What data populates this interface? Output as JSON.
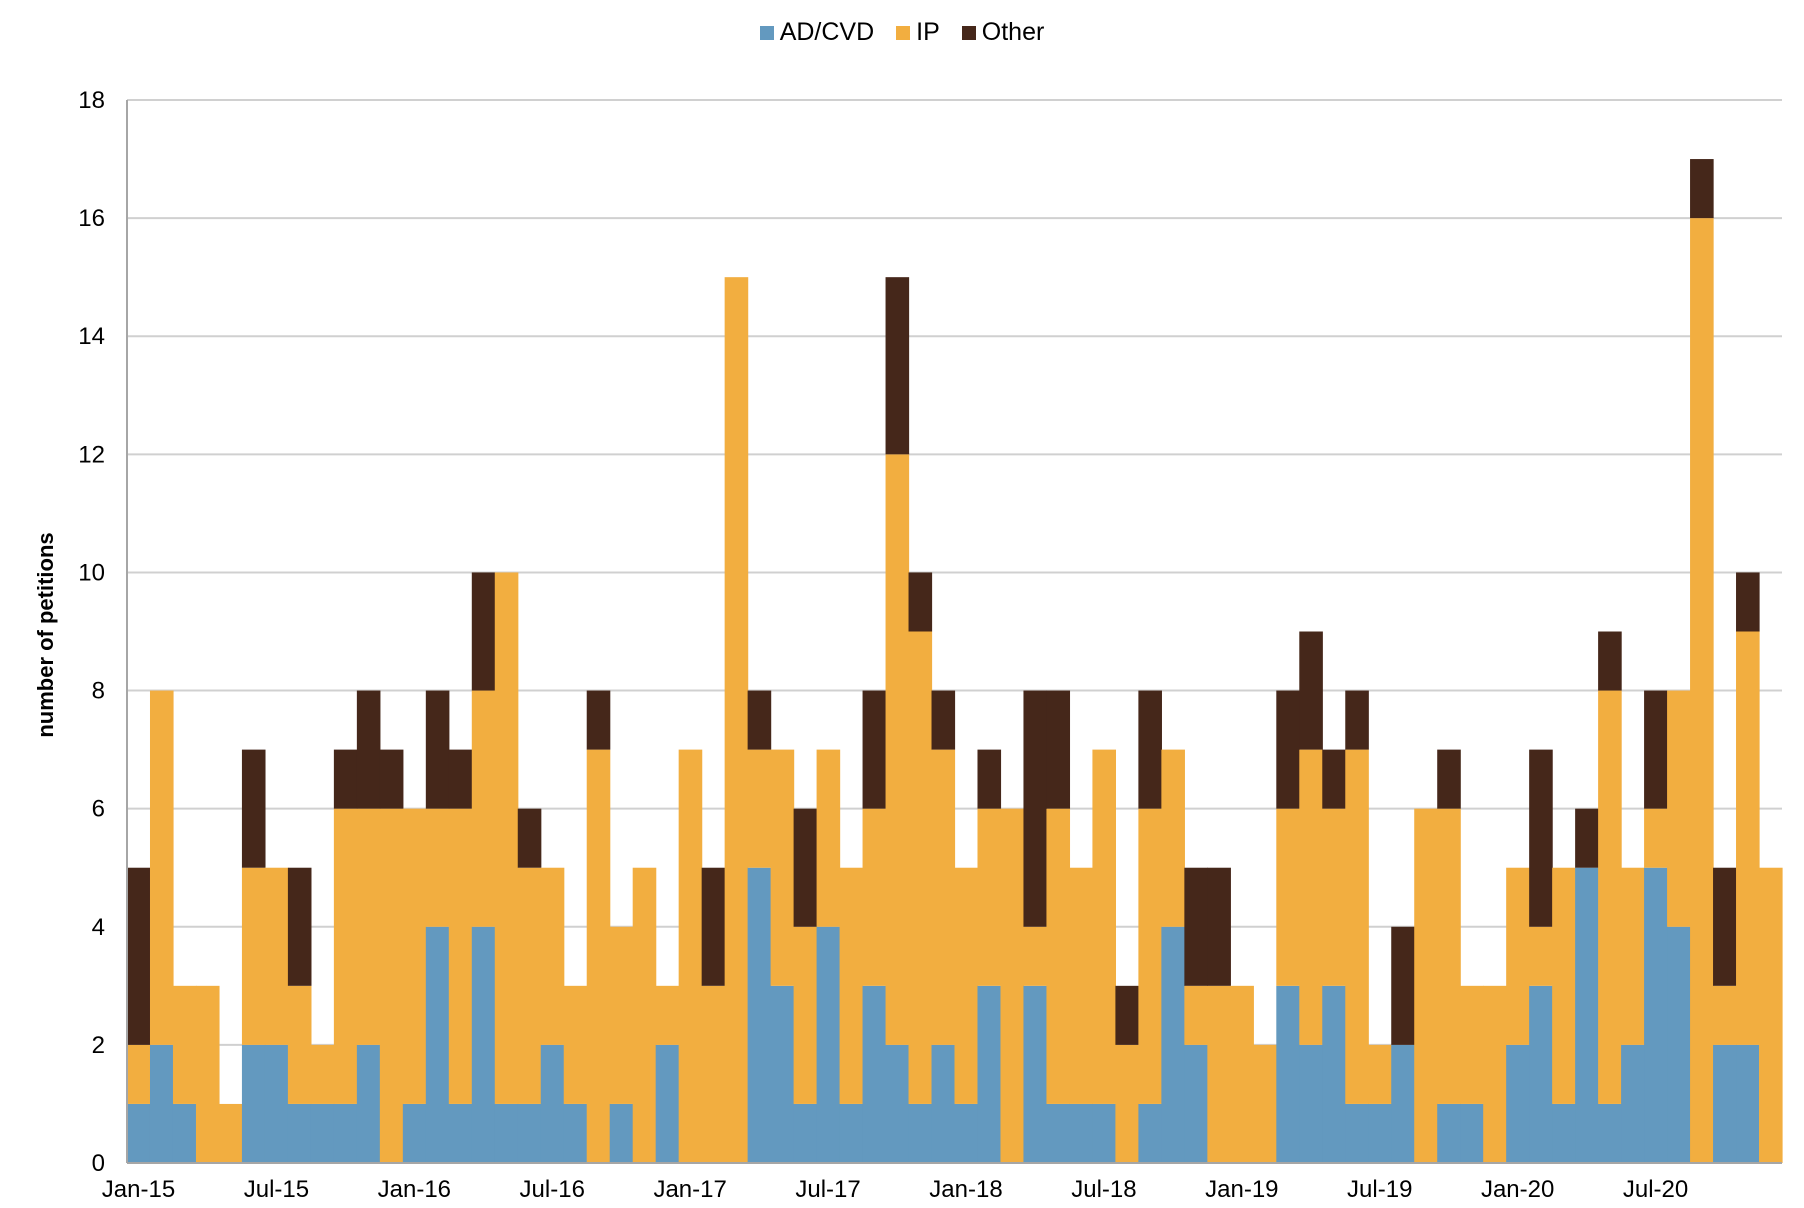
{
  "chart_data": {
    "type": "bar",
    "stacked": true,
    "title": "",
    "xlabel": "",
    "ylabel": "number of petitions",
    "ylim": [
      0,
      18
    ],
    "yticks": [
      0,
      2,
      4,
      6,
      8,
      10,
      12,
      14,
      16,
      18
    ],
    "grid": true,
    "legend_position": "top-center",
    "x_tick_labels": [
      "Jan-15",
      "Jul-15",
      "Jan-16",
      "Jul-16",
      "Jan-17",
      "Jul-17",
      "Jan-18",
      "Jul-18",
      "Jan-19",
      "Jul-19",
      "Jan-20",
      "Jul-20"
    ],
    "x_tick_every": 6,
    "categories": [
      "Jan-15",
      "Feb-15",
      "Mar-15",
      "Apr-15",
      "May-15",
      "Jun-15",
      "Jul-15",
      "Aug-15",
      "Sep-15",
      "Oct-15",
      "Nov-15",
      "Dec-15",
      "Jan-16",
      "Feb-16",
      "Mar-16",
      "Apr-16",
      "May-16",
      "Jun-16",
      "Jul-16",
      "Aug-16",
      "Sep-16",
      "Oct-16",
      "Nov-16",
      "Dec-16",
      "Jan-17",
      "Feb-17",
      "Mar-17",
      "Apr-17",
      "May-17",
      "Jun-17",
      "Jul-17",
      "Aug-17",
      "Sep-17",
      "Oct-17",
      "Nov-17",
      "Dec-17",
      "Jan-18",
      "Feb-18",
      "Mar-18",
      "Apr-18",
      "May-18",
      "Jun-18",
      "Jul-18",
      "Aug-18",
      "Sep-18",
      "Oct-18",
      "Nov-18",
      "Dec-18",
      "Jan-19",
      "Feb-19",
      "Mar-19",
      "Apr-19",
      "May-19",
      "Jun-19",
      "Jul-19",
      "Aug-19",
      "Sep-19",
      "Oct-19",
      "Nov-19",
      "Dec-19",
      "Jan-20",
      "Feb-20",
      "Mar-20",
      "Apr-20",
      "May-20",
      "Jun-20",
      "Jul-20",
      "Aug-20",
      "Sep-20",
      "Oct-20",
      "Nov-20",
      "Dec-20"
    ],
    "series": [
      {
        "name": "AD/CVD",
        "color": "#6399bf",
        "values": [
          1,
          2,
          1,
          0,
          0,
          2,
          2,
          1,
          1,
          1,
          2,
          0,
          1,
          4,
          1,
          4,
          1,
          1,
          2,
          1,
          0,
          1,
          0,
          2,
          0,
          0,
          0,
          5,
          3,
          1,
          4,
          1,
          3,
          2,
          1,
          2,
          1,
          3,
          0,
          3,
          1,
          1,
          1,
          0,
          1,
          4,
          2,
          0,
          0,
          0,
          3,
          2,
          3,
          1,
          1,
          2,
          0,
          1,
          1,
          0,
          2,
          3,
          1,
          5,
          1,
          2,
          5,
          4,
          0,
          2,
          2,
          0
        ]
      },
      {
        "name": "IP",
        "color": "#f2ae40",
        "values": [
          1,
          6,
          2,
          3,
          1,
          3,
          3,
          2,
          1,
          5,
          4,
          6,
          5,
          2,
          5,
          4,
          9,
          4,
          3,
          2,
          7,
          3,
          5,
          1,
          7,
          3,
          15,
          2,
          4,
          3,
          3,
          4,
          3,
          10,
          8,
          5,
          4,
          3,
          6,
          1,
          5,
          4,
          6,
          2,
          5,
          3,
          1,
          3,
          3,
          2,
          3,
          5,
          3,
          6,
          1,
          0,
          6,
          5,
          2,
          3,
          3,
          1,
          4,
          0,
          7,
          3,
          1,
          4,
          16,
          1,
          7,
          5
        ]
      },
      {
        "name": "Other",
        "color": "#45271a",
        "values": [
          3,
          0,
          0,
          0,
          0,
          2,
          0,
          2,
          0,
          1,
          2,
          1,
          0,
          2,
          1,
          2,
          0,
          1,
          0,
          0,
          1,
          0,
          0,
          0,
          0,
          2,
          0,
          1,
          0,
          2,
          0,
          0,
          2,
          3,
          1,
          1,
          0,
          1,
          0,
          4,
          2,
          0,
          0,
          1,
          2,
          0,
          2,
          2,
          0,
          0,
          2,
          2,
          1,
          1,
          0,
          2,
          0,
          1,
          0,
          0,
          0,
          3,
          0,
          1,
          1,
          0,
          2,
          0,
          1,
          2,
          1,
          0
        ]
      }
    ]
  }
}
